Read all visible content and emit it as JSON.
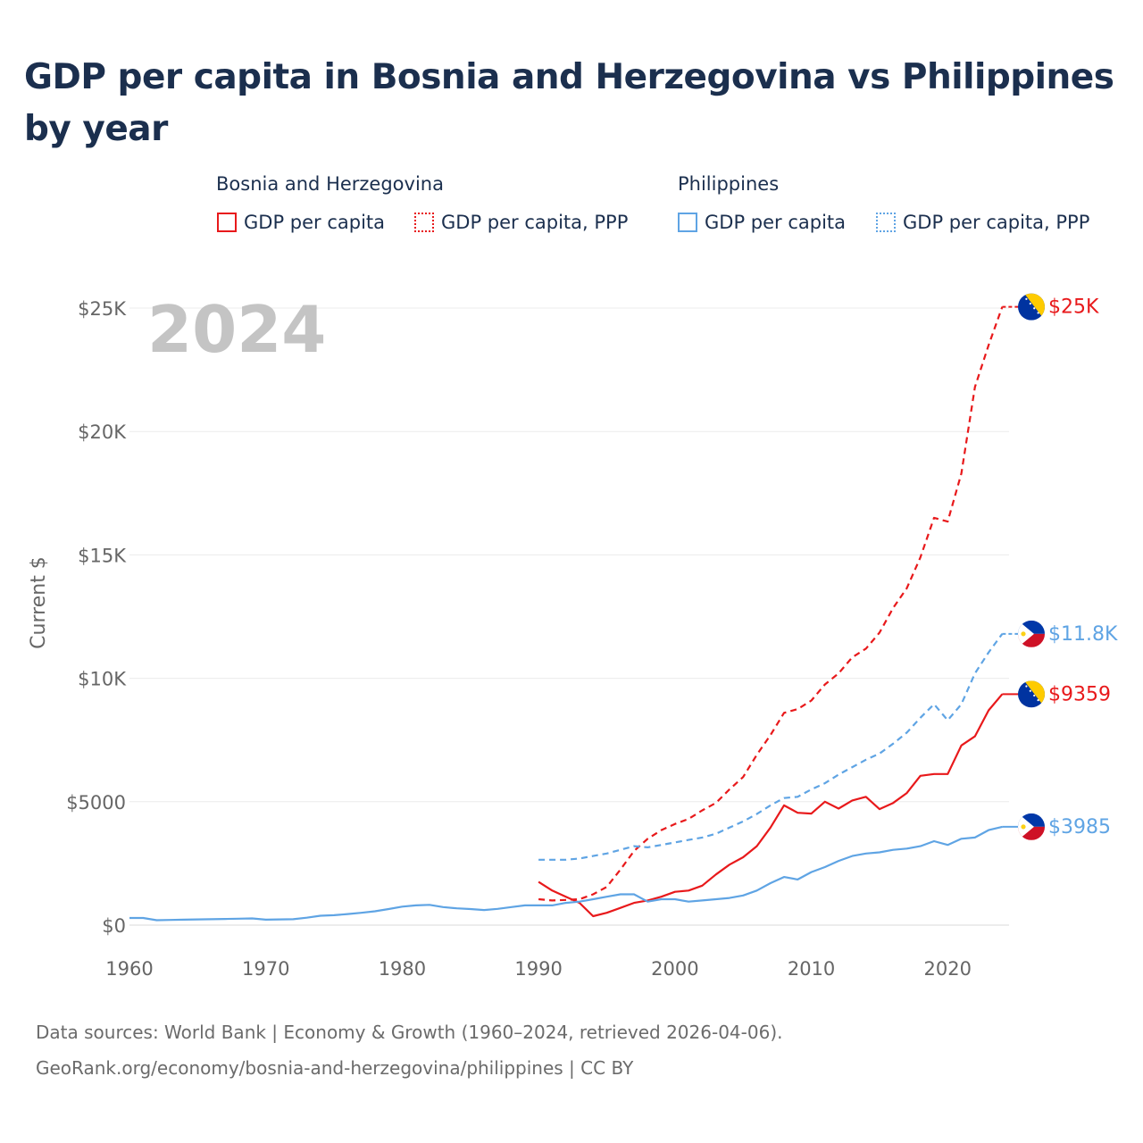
{
  "title": "GDP per capita in Bosnia and Herzegovina vs Philippines by year",
  "legend": {
    "groups": [
      {
        "name": "Bosnia and Herzegovina",
        "color": "#e8191b",
        "items": [
          {
            "label": "GDP per capita",
            "style": "solid"
          },
          {
            "label": "GDP per capita, PPP",
            "style": "dotted"
          }
        ]
      },
      {
        "name": "Philippines",
        "color": "#5fa4e4",
        "items": [
          {
            "label": "GDP per capita",
            "style": "solid"
          },
          {
            "label": "GDP per capita, PPP",
            "style": "dotted"
          }
        ]
      }
    ]
  },
  "year_watermark": "2024",
  "chart_data": {
    "type": "line",
    "title": "GDP per capita in Bosnia and Herzegovina vs Philippines by year",
    "xlabel": "",
    "ylabel": "Current $",
    "xlim": [
      1960,
      2024.5
    ],
    "ylim": [
      0,
      25000
    ],
    "x_ticks": [
      1960,
      1970,
      1980,
      1990,
      2000,
      2010,
      2020
    ],
    "x_tick_labels": [
      "1960",
      "1970",
      "1980",
      "1990",
      "2000",
      "2010",
      "2020"
    ],
    "y_ticks": [
      0,
      5000,
      10000,
      15000,
      20000,
      25000
    ],
    "y_tick_labels": [
      "$0",
      "$5000",
      "$10K",
      "$15K",
      "$20K",
      "$25K"
    ],
    "grid": true,
    "series": [
      {
        "name": "Bosnia and Herzegovina GDP per capita",
        "color": "#e8191b",
        "dash": "solid",
        "end_label": "$9359",
        "flag": "bosnia-flag-icon",
        "x": [
          1990,
          1991,
          1992,
          1993,
          1994,
          1995,
          1996,
          1997,
          1998,
          1999,
          2000,
          2001,
          2002,
          2003,
          2004,
          2005,
          2006,
          2007,
          2008,
          2009,
          2010,
          2011,
          2012,
          2013,
          2014,
          2015,
          2016,
          2017,
          2018,
          2019,
          2020,
          2021,
          2022,
          2023,
          2024
        ],
        "y": [
          1750,
          1400,
          1150,
          900,
          360,
          500,
          700,
          900,
          1000,
          1150,
          1350,
          1400,
          1600,
          2050,
          2450,
          2750,
          3200,
          3950,
          4850,
          4550,
          4520,
          5000,
          4720,
          5050,
          5200,
          4700,
          4950,
          5350,
          6050,
          6120,
          6120,
          7280,
          7650,
          8700,
          9359
        ]
      },
      {
        "name": "Bosnia and Herzegovina GDP per capita, PPP",
        "color": "#e8191b",
        "dash": "dashed",
        "end_label": "$25K",
        "flag": "bosnia-flag-icon",
        "x": [
          1990,
          1991,
          1992,
          1993,
          1994,
          1995,
          1996,
          1997,
          1998,
          1999,
          2000,
          2001,
          2002,
          2003,
          2004,
          2005,
          2006,
          2007,
          2008,
          2009,
          2010,
          2011,
          2012,
          2013,
          2014,
          2015,
          2016,
          2017,
          2018,
          2019,
          2020,
          2021,
          2022,
          2023,
          2024
        ],
        "y": [
          1050,
          1000,
          1020,
          1050,
          1250,
          1550,
          2250,
          3000,
          3500,
          3850,
          4100,
          4300,
          4650,
          4950,
          5500,
          6000,
          6900,
          7700,
          8600,
          8750,
          9100,
          9750,
          10200,
          10850,
          11200,
          11850,
          12850,
          13650,
          14900,
          16500,
          16350,
          18300,
          21800,
          23500,
          25050
        ]
      },
      {
        "name": "Philippines GDP per capita",
        "color": "#5fa4e4",
        "dash": "solid",
        "end_label": "$3985",
        "flag": "philippines-flag-icon",
        "x": [
          1960,
          1961,
          1962,
          1963,
          1964,
          1965,
          1966,
          1967,
          1968,
          1969,
          1970,
          1971,
          1972,
          1973,
          1974,
          1975,
          1976,
          1977,
          1978,
          1979,
          1980,
          1981,
          1982,
          1983,
          1984,
          1985,
          1986,
          1987,
          1988,
          1989,
          1990,
          1991,
          1992,
          1993,
          1994,
          1995,
          1996,
          1997,
          1998,
          1999,
          2000,
          2001,
          2002,
          2003,
          2004,
          2005,
          2006,
          2007,
          2008,
          2009,
          2010,
          2011,
          2012,
          2013,
          2014,
          2015,
          2016,
          2017,
          2018,
          2019,
          2020,
          2021,
          2022,
          2023,
          2024
        ],
        "y": [
          290,
          290,
          200,
          210,
          220,
          230,
          240,
          250,
          260,
          270,
          220,
          230,
          240,
          300,
          380,
          400,
          450,
          500,
          560,
          650,
          750,
          800,
          820,
          730,
          680,
          650,
          610,
          660,
          730,
          800,
          800,
          800,
          900,
          950,
          1050,
          1150,
          1250,
          1250,
          950,
          1050,
          1050,
          950,
          1000,
          1050,
          1100,
          1200,
          1400,
          1700,
          1950,
          1850,
          2150,
          2350,
          2600,
          2800,
          2900,
          2950,
          3050,
          3100,
          3200,
          3400,
          3250,
          3500,
          3550,
          3850,
          3985
        ]
      },
      {
        "name": "Philippines GDP per capita, PPP",
        "color": "#5fa4e4",
        "dash": "dashed",
        "end_label": "$11.8K",
        "flag": "philippines-flag-icon",
        "x": [
          1990,
          1991,
          1992,
          1993,
          1994,
          1995,
          1996,
          1997,
          1998,
          1999,
          2000,
          2001,
          2002,
          2003,
          2004,
          2005,
          2006,
          2007,
          2008,
          2009,
          2010,
          2011,
          2012,
          2013,
          2014,
          2015,
          2016,
          2017,
          2018,
          2019,
          2020,
          2021,
          2022,
          2023,
          2024
        ],
        "y": [
          2650,
          2650,
          2650,
          2700,
          2800,
          2900,
          3050,
          3200,
          3150,
          3250,
          3350,
          3450,
          3550,
          3700,
          3950,
          4200,
          4500,
          4850,
          5150,
          5200,
          5500,
          5750,
          6100,
          6400,
          6700,
          6950,
          7350,
          7800,
          8400,
          8950,
          8300,
          8950,
          10200,
          11050,
          11800
        ]
      }
    ]
  },
  "footer": {
    "line1": "Data sources: World Bank | Economy & Growth (1960–2024, retrieved 2026-04-06).",
    "line2": "GeoRank.org/economy/bosnia-and-herzegovina/philippines | CC BY"
  }
}
